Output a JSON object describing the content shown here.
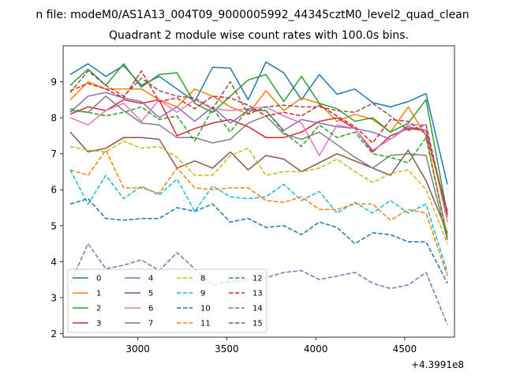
{
  "figure": {
    "suptitle": "n file: modeM0/AS1A13_004T09_9000005992_44345cztM0_level2_quad_clean"
  },
  "chart_data": {
    "type": "line",
    "title": "Quadrant 2 module wise count rates with 100.0s bins.",
    "xlabel": "",
    "ylabel": "",
    "x_offset_label": "+4.3991e8",
    "x": [
      2620,
      2720,
      2820,
      2920,
      3020,
      3120,
      3220,
      3320,
      3420,
      3520,
      3620,
      3720,
      3820,
      3920,
      4020,
      4120,
      4220,
      4320,
      4420,
      4520,
      4620,
      4740
    ],
    "xlim": [
      2580,
      4780
    ],
    "ylim": [
      1.9,
      10.0
    ],
    "xticks": [
      3000,
      3500,
      4000,
      4500
    ],
    "xtick_labels": [
      "3000",
      "3500",
      "4000",
      "4500"
    ],
    "yticks": [
      2,
      3,
      4,
      5,
      6,
      7,
      8,
      9
    ],
    "ytick_labels": [
      "2",
      "3",
      "4",
      "5",
      "6",
      "7",
      "8",
      "9"
    ],
    "grid": false,
    "legend_position": "lower-left",
    "legend_columns": 4,
    "series": [
      {
        "name": "0",
        "color": "#1f77b4",
        "dash": "solid",
        "values": [
          9.2,
          9.5,
          9.15,
          9.45,
          8.9,
          9.15,
          8.8,
          8.45,
          9.4,
          9.38,
          8.5,
          9.55,
          9.25,
          8.5,
          9.2,
          8.65,
          8.8,
          8.42,
          8.3,
          8.45,
          8.67,
          6.15
        ]
      },
      {
        "name": "1",
        "color": "#ff7f0e",
        "dash": "solid",
        "values": [
          8.5,
          9.0,
          8.8,
          8.8,
          8.8,
          8.5,
          8.3,
          8.8,
          8.6,
          8.3,
          8.1,
          8.75,
          8.2,
          8.55,
          8.4,
          7.9,
          8.1,
          7.95,
          7.6,
          8.3,
          7.5,
          4.7
        ]
      },
      {
        "name": "2",
        "color": "#2ca02c",
        "dash": "solid",
        "values": [
          8.9,
          9.35,
          8.9,
          9.5,
          8.85,
          9.2,
          9.25,
          8.4,
          8.15,
          8.6,
          9.05,
          9.2,
          8.45,
          9.15,
          8.4,
          8.25,
          7.9,
          8.0,
          7.6,
          7.85,
          8.5,
          5.3
        ]
      },
      {
        "name": "3",
        "color": "#d62728",
        "dash": "solid",
        "values": [
          8.1,
          8.3,
          8.2,
          8.5,
          8.4,
          8.5,
          7.5,
          7.7,
          7.85,
          7.95,
          7.75,
          7.45,
          7.45,
          7.6,
          7.9,
          8.0,
          7.7,
          7.05,
          7.5,
          7.7,
          7.65,
          5.3
        ]
      },
      {
        "name": "4",
        "color": "#9467bd",
        "dash": "solid",
        "values": [
          8.15,
          8.6,
          8.7,
          8.55,
          8.45,
          8.0,
          8.3,
          7.9,
          8.3,
          7.85,
          8.2,
          8.2,
          7.65,
          7.95,
          7.85,
          7.75,
          7.7,
          7.6,
          7.4,
          7.75,
          7.65,
          5.35
        ]
      },
      {
        "name": "5",
        "color": "#8c564b",
        "dash": "solid",
        "values": [
          7.6,
          7.05,
          7.15,
          7.45,
          7.45,
          7.4,
          6.6,
          6.8,
          6.6,
          7.05,
          6.55,
          6.95,
          6.85,
          6.5,
          6.75,
          7.0,
          6.8,
          6.6,
          6.4,
          7.1,
          6.25,
          4.8
        ]
      },
      {
        "name": "6",
        "color": "#e377c2",
        "dash": "solid",
        "values": [
          8.0,
          7.8,
          8.2,
          8.4,
          7.9,
          8.5,
          8.15,
          8.5,
          8.25,
          8.2,
          8.25,
          8.3,
          8.05,
          7.85,
          6.95,
          7.8,
          7.7,
          7.1,
          7.4,
          7.8,
          7.8,
          5.1
        ]
      },
      {
        "name": "7",
        "color": "#7f7f7f",
        "dash": "solid",
        "values": [
          8.2,
          8.15,
          8.6,
          8.2,
          7.85,
          7.8,
          7.45,
          7.45,
          7.3,
          7.4,
          7.85,
          8.05,
          7.55,
          7.4,
          7.6,
          7.25,
          6.9,
          6.6,
          6.95,
          7.0,
          6.95,
          4.6
        ]
      },
      {
        "name": "8",
        "color": "#bcbd22",
        "dash": "dashed",
        "values": [
          7.2,
          7.1,
          7.05,
          7.35,
          7.15,
          7.2,
          6.9,
          6.4,
          6.4,
          6.95,
          7.15,
          6.4,
          6.5,
          6.5,
          6.6,
          6.85,
          6.5,
          6.2,
          6.45,
          6.55,
          6.0,
          4.5
        ]
      },
      {
        "name": "9",
        "color": "#17becf",
        "dash": "dashed",
        "values": [
          6.55,
          5.6,
          6.4,
          5.75,
          6.1,
          5.85,
          6.3,
          5.4,
          6.1,
          5.8,
          5.75,
          5.8,
          6.15,
          5.7,
          5.95,
          5.35,
          5.65,
          5.35,
          5.7,
          5.35,
          5.6,
          3.7
        ]
      },
      {
        "name": "10",
        "color": "#1f77b4",
        "dash": "dashed",
        "values": [
          5.6,
          5.75,
          5.2,
          5.15,
          5.2,
          5.2,
          5.5,
          5.4,
          5.6,
          5.1,
          5.2,
          4.95,
          5.0,
          4.75,
          5.1,
          4.95,
          4.5,
          4.8,
          4.75,
          4.55,
          4.55,
          3.4
        ]
      },
      {
        "name": "11",
        "color": "#ff7f0e",
        "dash": "dashed",
        "values": [
          6.55,
          6.4,
          7.1,
          6.05,
          6.05,
          5.9,
          6.6,
          6.05,
          6.0,
          6.05,
          6.05,
          5.7,
          5.65,
          5.8,
          5.45,
          5.45,
          5.6,
          5.6,
          5.15,
          5.45,
          5.35,
          3.6
        ]
      },
      {
        "name": "12",
        "color": "#2ca02c",
        "dash": "dashed",
        "values": [
          8.25,
          8.15,
          8.05,
          8.15,
          8.3,
          7.95,
          8.05,
          7.35,
          8.25,
          7.6,
          8.25,
          8.2,
          7.6,
          7.2,
          7.8,
          7.45,
          7.6,
          7.0,
          6.9,
          6.75,
          7.45,
          4.65
        ]
      },
      {
        "name": "13",
        "color": "#d62728",
        "dash": "dashed",
        "values": [
          8.75,
          8.95,
          8.8,
          8.55,
          9.3,
          8.45,
          8.55,
          8.25,
          8.6,
          8.55,
          8.35,
          8.05,
          8.15,
          8.05,
          8.35,
          8.05,
          7.75,
          7.3,
          7.95,
          7.9,
          7.55,
          5.4
        ]
      },
      {
        "name": "14",
        "color": "#9467bd",
        "dash": "dashed",
        "values": [
          3.4,
          4.5,
          3.8,
          3.9,
          4.05,
          3.75,
          4.25,
          3.8,
          3.35,
          3.45,
          3.5,
          3.55,
          3.7,
          3.75,
          3.5,
          3.6,
          3.7,
          3.4,
          3.25,
          3.35,
          3.7,
          2.25
        ]
      },
      {
        "name": "15",
        "color": "#8c564b",
        "dash": "dashed",
        "values": [
          8.7,
          9.3,
          8.9,
          8.6,
          9.1,
          8.75,
          8.6,
          8.55,
          8.25,
          9.0,
          8.1,
          8.3,
          8.35,
          8.3,
          8.3,
          8.2,
          8.15,
          8.4,
          8.05,
          7.65,
          7.8,
          5.25
        ]
      }
    ]
  }
}
